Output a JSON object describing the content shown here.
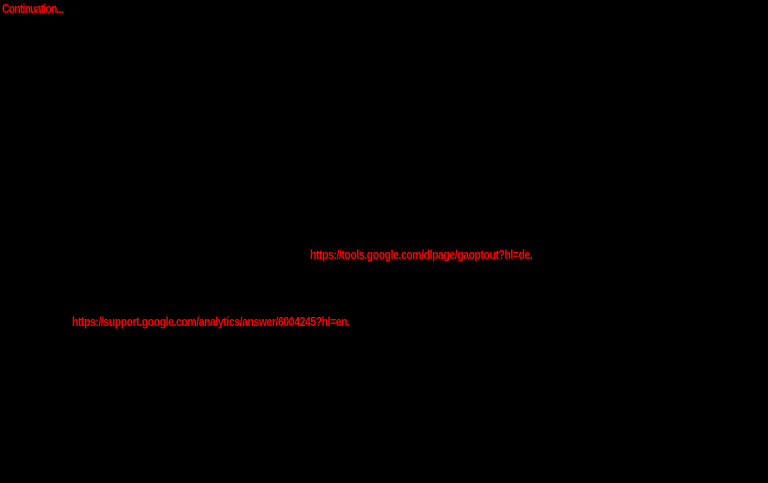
{
  "page": {
    "title": "Continuation...",
    "links": [
      {
        "text": "https://tools.google.com/dlpage/gaoptout?hl=de."
      },
      {
        "text": "https://support.google.com/analytics/answer/6004245?hl=en."
      }
    ],
    "colors": {
      "background": "#000000",
      "text_red": "#ff0000"
    }
  }
}
